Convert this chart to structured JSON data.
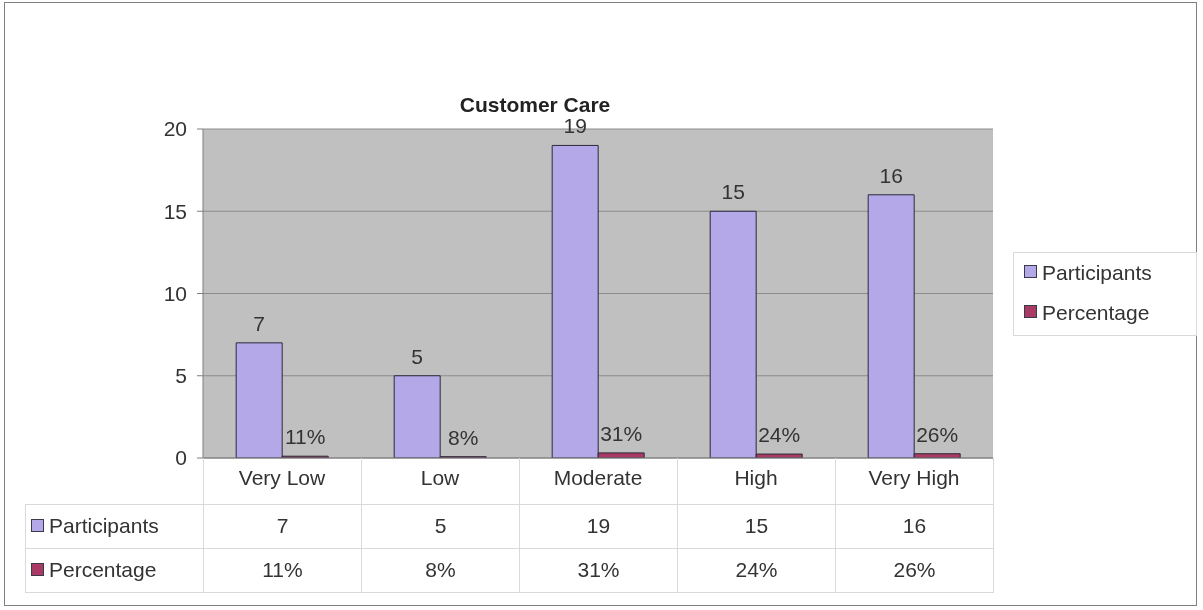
{
  "chart_data": {
    "type": "bar",
    "title": "Customer Care",
    "categories": [
      "Very Low",
      "Low",
      "Moderate",
      "High",
      "Very High"
    ],
    "series": [
      {
        "name": "Participants",
        "color": "#b4a8e8",
        "values": [
          7,
          5,
          19,
          15,
          16
        ],
        "value_labels": [
          "7",
          "5",
          "19",
          "15",
          "16"
        ]
      },
      {
        "name": "Percentage",
        "color": "#a83a64",
        "values": [
          0.11,
          0.08,
          0.31,
          0.24,
          0.26
        ],
        "value_labels": [
          "11%",
          "8%",
          "31%",
          "24%",
          "26%"
        ]
      }
    ],
    "ylim": [
      0,
      20
    ],
    "yticks": [
      0,
      5,
      10,
      15,
      20
    ],
    "grid": "y",
    "legend": "right"
  }
}
